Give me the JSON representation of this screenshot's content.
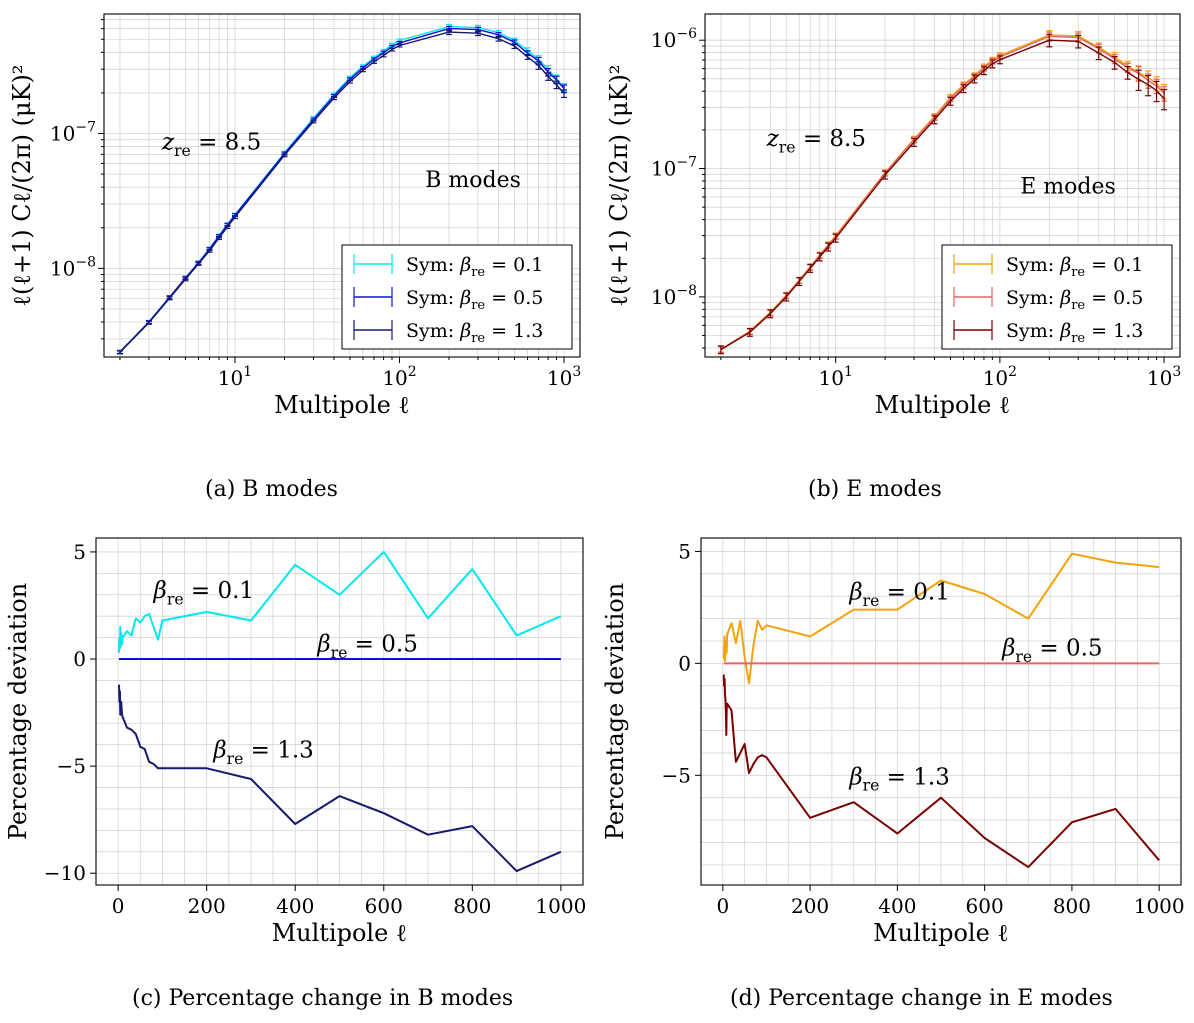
{
  "chart_data": [
    {
      "id": "a",
      "type": "line",
      "xscale": "log",
      "yscale": "log",
      "xlabel": "Multipole ℓ",
      "ylabel": "ℓ(ℓ+1) Cℓ/(2π) (μK)²",
      "xlim": [
        1.6,
        1250
      ],
      "ylim": [
        2.2e-09,
        7.7e-07
      ],
      "xticks": [
        {
          "v": 10,
          "b": "10",
          "e": "1"
        },
        {
          "v": 100,
          "b": "10",
          "e": "2"
        },
        {
          "v": 1000,
          "b": "10",
          "e": "3"
        }
      ],
      "yticks": [
        {
          "v": 1e-08,
          "b": "10",
          "e": "−8"
        },
        {
          "v": 1e-07,
          "b": "10",
          "e": "−7"
        }
      ],
      "annotations": [
        {
          "text": "B modes",
          "x": 280,
          "y": 4e-08
        }
      ],
      "zre": {
        "label": "z",
        "sub": "re",
        "value": "= 8.5",
        "x": 3.6,
        "y": 7.6e-08
      },
      "legend_position": "lower-right",
      "x": [
        2,
        3,
        4,
        5,
        6,
        7,
        8,
        9,
        10,
        20,
        30,
        40,
        50,
        60,
        70,
        80,
        90,
        100,
        200,
        300,
        400,
        500,
        600,
        700,
        800,
        900,
        1000
      ],
      "series": [
        {
          "name": "Sym: βre = 0.1",
          "color": "#00e8f0",
          "err": 0.025,
          "values": [
            2.4e-09,
            4e-09,
            6.1e-09,
            8.5e-09,
            1.1e-08,
            1.4e-08,
            1.75e-08,
            2.12e-08,
            2.5e-08,
            7.2e-08,
            1.3e-07,
            1.95e-07,
            2.6e-07,
            3.15e-07,
            3.65e-07,
            4.1e-07,
            4.55e-07,
            4.9e-07,
            6.2e-07,
            6.1e-07,
            5.6e-07,
            4.9e-07,
            4.15e-07,
            3.55e-07,
            3e-07,
            2.55e-07,
            2.2e-07
          ]
        },
        {
          "name": "Sym: βre = 0.5",
          "color": "#1010d8",
          "err": 0.025,
          "values": [
            2.4e-09,
            4e-09,
            6.1e-09,
            8.5e-09,
            1.1e-08,
            1.39e-08,
            1.73e-08,
            2.1e-08,
            2.48e-08,
            7.1e-08,
            1.27e-07,
            1.9e-07,
            2.53e-07,
            3.07e-07,
            3.55e-07,
            3.98e-07,
            4.4e-07,
            4.7e-07,
            6e-07,
            5.9e-07,
            5.4e-07,
            4.75e-07,
            3.95e-07,
            3.45e-07,
            2.85e-07,
            2.5e-07,
            2.15e-07
          ]
        },
        {
          "name": "Sym: βre = 1.3",
          "color": "#141a6e",
          "err": 0.025,
          "values": [
            2.38e-09,
            3.95e-09,
            6e-09,
            8.3e-09,
            1.08e-08,
            1.35e-08,
            1.68e-08,
            2.03e-08,
            2.4e-08,
            6.9e-08,
            1.23e-07,
            1.83e-07,
            2.43e-07,
            2.95e-07,
            3.4e-07,
            3.8e-07,
            4.2e-07,
            4.5e-07,
            5.65e-07,
            5.55e-07,
            5.05e-07,
            4.45e-07,
            3.7e-07,
            3.2e-07,
            2.65e-07,
            2.3e-07,
            1.98e-07
          ]
        }
      ]
    },
    {
      "id": "b",
      "type": "line",
      "xscale": "log",
      "yscale": "log",
      "xlabel": "Multipole ℓ",
      "ylabel": "ℓ(ℓ+1) Cℓ/(2π) (μK)²",
      "xlim": [
        1.6,
        1250
      ],
      "ylim": [
        3.4e-09,
        1.6e-06
      ],
      "xticks": [
        {
          "v": 10,
          "b": "10",
          "e": "1"
        },
        {
          "v": 100,
          "b": "10",
          "e": "2"
        },
        {
          "v": 1000,
          "b": "10",
          "e": "3"
        }
      ],
      "yticks": [
        {
          "v": 1e-08,
          "b": "10",
          "e": "−8"
        },
        {
          "v": 1e-07,
          "b": "10",
          "e": "−7"
        },
        {
          "v": 1e-06,
          "b": "10",
          "e": "−6"
        }
      ],
      "annotations": [
        {
          "text": "E modes",
          "x": 260,
          "y": 6.4e-08
        }
      ],
      "zre": {
        "label": "z",
        "sub": "re",
        "value": "= 8.5",
        "x": 3.8,
        "y": 1.5e-07
      },
      "legend_position": "lower-right",
      "x": [
        2,
        3,
        4,
        5,
        6,
        7,
        8,
        9,
        10,
        20,
        30,
        40,
        50,
        60,
        70,
        80,
        90,
        100,
        200,
        300,
        400,
        500,
        600,
        700,
        800,
        900,
        1000
      ],
      "series": [
        {
          "name": "Sym: βre = 0.1",
          "color": "#f5a20c",
          "err": 0.05,
          "values": [
            3.9e-09,
            5.4e-09,
            7.6e-09,
            1.03e-08,
            1.35e-08,
            1.72e-08,
            2.12e-08,
            2.55e-08,
            3e-08,
            9.3e-08,
            1.7e-07,
            2.55e-07,
            3.6e-07,
            4.5e-07,
            5.3e-07,
            6.2e-07,
            7e-07,
            7.6e-07,
            1.1e-06,
            1.08e-06,
            8.8e-07,
            7.4e-07,
            6.3e-07,
            5.6e-07,
            5.1e-07,
            4.6e-07,
            4e-07
          ]
        },
        {
          "name": "Sym: βre = 0.5",
          "color": "#e06666",
          "err": 0.05,
          "values": [
            3.9e-09,
            5.35e-09,
            7.5e-09,
            1.02e-08,
            1.34e-08,
            1.7e-08,
            2.1e-08,
            2.52e-08,
            2.96e-08,
            9.2e-08,
            1.67e-07,
            2.5e-07,
            3.5e-07,
            4.4e-07,
            5.2e-07,
            6.05e-07,
            6.85e-07,
            7.4e-07,
            1.07e-06,
            1.05e-06,
            8.6e-07,
            7.15e-07,
            6.1e-07,
            5.5e-07,
            4.85e-07,
            4.4e-07,
            3.85e-07
          ]
        },
        {
          "name": "Sym: βre = 1.3",
          "color": "#7a0000",
          "err": 0.07,
          "values": [
            3.88e-09,
            5.3e-09,
            7.4e-09,
            1e-08,
            1.32e-08,
            1.67e-08,
            2.05e-08,
            2.45e-08,
            2.87e-08,
            8.9e-08,
            1.6e-07,
            2.4e-07,
            3.35e-07,
            4.2e-07,
            5e-07,
            5.8e-07,
            6.55e-07,
            7.05e-07,
            1e-06,
            9.8e-07,
            7.95e-07,
            6.7e-07,
            5.6e-07,
            4.95e-07,
            4.5e-07,
            4.05e-07,
            3.5e-07
          ]
        }
      ]
    },
    {
      "id": "c",
      "type": "line",
      "xscale": "linear",
      "yscale": "linear",
      "xlabel": "Multipole ℓ",
      "ylabel": "Percentage deviation",
      "xlim": [
        -50,
        1050
      ],
      "ylim": [
        -10.55,
        5.65
      ],
      "xticks": [
        {
          "v": 0,
          "t": "0"
        },
        {
          "v": 200,
          "t": "200"
        },
        {
          "v": 400,
          "t": "400"
        },
        {
          "v": 600,
          "t": "600"
        },
        {
          "v": 800,
          "t": "800"
        },
        {
          "v": 1000,
          "t": "1000"
        }
      ],
      "yticks": [
        {
          "v": 5,
          "t": "5"
        },
        {
          "v": 0,
          "t": "0"
        },
        {
          "v": -5,
          "t": "−5"
        },
        {
          "v": -10,
          "t": "−10"
        }
      ],
      "ygrid_step": 1,
      "labels": [
        {
          "text": "= 0.1",
          "x": 80,
          "y": 2.85
        },
        {
          "text": "= 0.5",
          "x": 450,
          "y": 0.35
        },
        {
          "text": "= 1.3",
          "x": 215,
          "y": -4.6
        }
      ],
      "x": [
        2,
        3,
        4,
        5,
        6,
        7,
        8,
        9,
        10,
        20,
        30,
        40,
        50,
        60,
        70,
        80,
        90,
        100,
        200,
        300,
        400,
        500,
        600,
        700,
        800,
        900,
        1000
      ],
      "series": [
        {
          "name": "βre = 0.1",
          "color": "#00e8f0",
          "values": [
            0.3,
            1.0,
            0.5,
            1.5,
            0.6,
            1.2,
            0.9,
            0.7,
            1.0,
            1.3,
            1.1,
            1.9,
            1.7,
            2.0,
            2.1,
            1.5,
            0.9,
            1.8,
            2.2,
            1.8,
            4.4,
            3.0,
            5.0,
            1.9,
            4.2,
            1.1,
            2.0
          ]
        },
        {
          "name": "βre = 0.5",
          "color": "#1010d8",
          "values": [
            0,
            0,
            0,
            0,
            0,
            0,
            0,
            0,
            0,
            0,
            0,
            0,
            0,
            0,
            0,
            0,
            0,
            0,
            0,
            0,
            0,
            0,
            0,
            0,
            0,
            0,
            0
          ]
        },
        {
          "name": "βre = 1.3",
          "color": "#141a6e",
          "values": [
            -1.2,
            -2.0,
            -1.5,
            -2.6,
            -2.2,
            -2.0,
            -2.4,
            -2.6,
            -2.7,
            -3.2,
            -3.3,
            -3.5,
            -4.1,
            -4.2,
            -4.8,
            -4.9,
            -5.1,
            -5.1,
            -5.1,
            -5.6,
            -7.7,
            -6.4,
            -7.2,
            -8.2,
            -7.8,
            -9.9,
            -9.0
          ]
        }
      ]
    },
    {
      "id": "d",
      "type": "line",
      "xscale": "linear",
      "yscale": "linear",
      "xlabel": "Multipole ℓ",
      "ylabel": "Percentage deviation",
      "xlim": [
        -50,
        1050
      ],
      "ylim": [
        -9.9,
        5.6
      ],
      "xticks": [
        {
          "v": 0,
          "t": "0"
        },
        {
          "v": 200,
          "t": "200"
        },
        {
          "v": 400,
          "t": "400"
        },
        {
          "v": 600,
          "t": "600"
        },
        {
          "v": 800,
          "t": "800"
        },
        {
          "v": 1000,
          "t": "1000"
        }
      ],
      "yticks": [
        {
          "v": 5,
          "t": "5"
        },
        {
          "v": 0,
          "t": "0"
        },
        {
          "v": -5,
          "t": "−5"
        }
      ],
      "ygrid_step": 1,
      "labels": [
        {
          "text": "= 0.1",
          "x": 290,
          "y": 2.85
        },
        {
          "text": "= 0.5",
          "x": 640,
          "y": 0.35
        },
        {
          "text": "= 1.3",
          "x": 290,
          "y": -5.4
        }
      ],
      "x": [
        2,
        3,
        4,
        5,
        6,
        7,
        8,
        9,
        10,
        20,
        30,
        40,
        50,
        60,
        70,
        80,
        90,
        100,
        200,
        300,
        400,
        500,
        600,
        700,
        800,
        900,
        1000
      ],
      "series": [
        {
          "name": "βre = 0.1",
          "color": "#f5a20c",
          "values": [
            0.2,
            0.6,
            1.2,
            0.1,
            0.8,
            0.4,
            1.0,
            0.5,
            1.3,
            1.8,
            0.9,
            1.9,
            0.3,
            -0.9,
            0.8,
            1.9,
            1.5,
            1.7,
            1.2,
            2.4,
            2.4,
            3.7,
            3.1,
            2.0,
            4.9,
            4.5,
            4.3
          ]
        },
        {
          "name": "βre = 0.5",
          "color": "#e06666",
          "values": [
            0,
            0,
            0,
            0,
            0,
            0,
            0,
            0,
            0,
            0,
            0,
            0,
            0,
            0,
            0,
            0,
            0,
            0,
            0,
            0,
            0,
            0,
            0,
            0,
            0,
            0,
            0
          ]
        },
        {
          "name": "βre = 1.3",
          "color": "#7a0000",
          "values": [
            -0.5,
            -1.0,
            -0.7,
            -1.4,
            -1.6,
            -2.2,
            -3.2,
            -2.0,
            -1.8,
            -2.1,
            -4.4,
            -4.0,
            -3.6,
            -4.9,
            -4.5,
            -4.2,
            -4.1,
            -4.2,
            -6.9,
            -6.2,
            -7.6,
            -6.0,
            -7.8,
            -9.1,
            -7.1,
            -6.5,
            -8.8
          ]
        }
      ]
    }
  ],
  "captions": {
    "a": "(a) B modes",
    "b": "(b) E modes",
    "c": "(c) Percentage change in B modes",
    "d": "(d) Percentage change in E modes"
  },
  "beta_symbol": "β",
  "beta_sub": "re"
}
